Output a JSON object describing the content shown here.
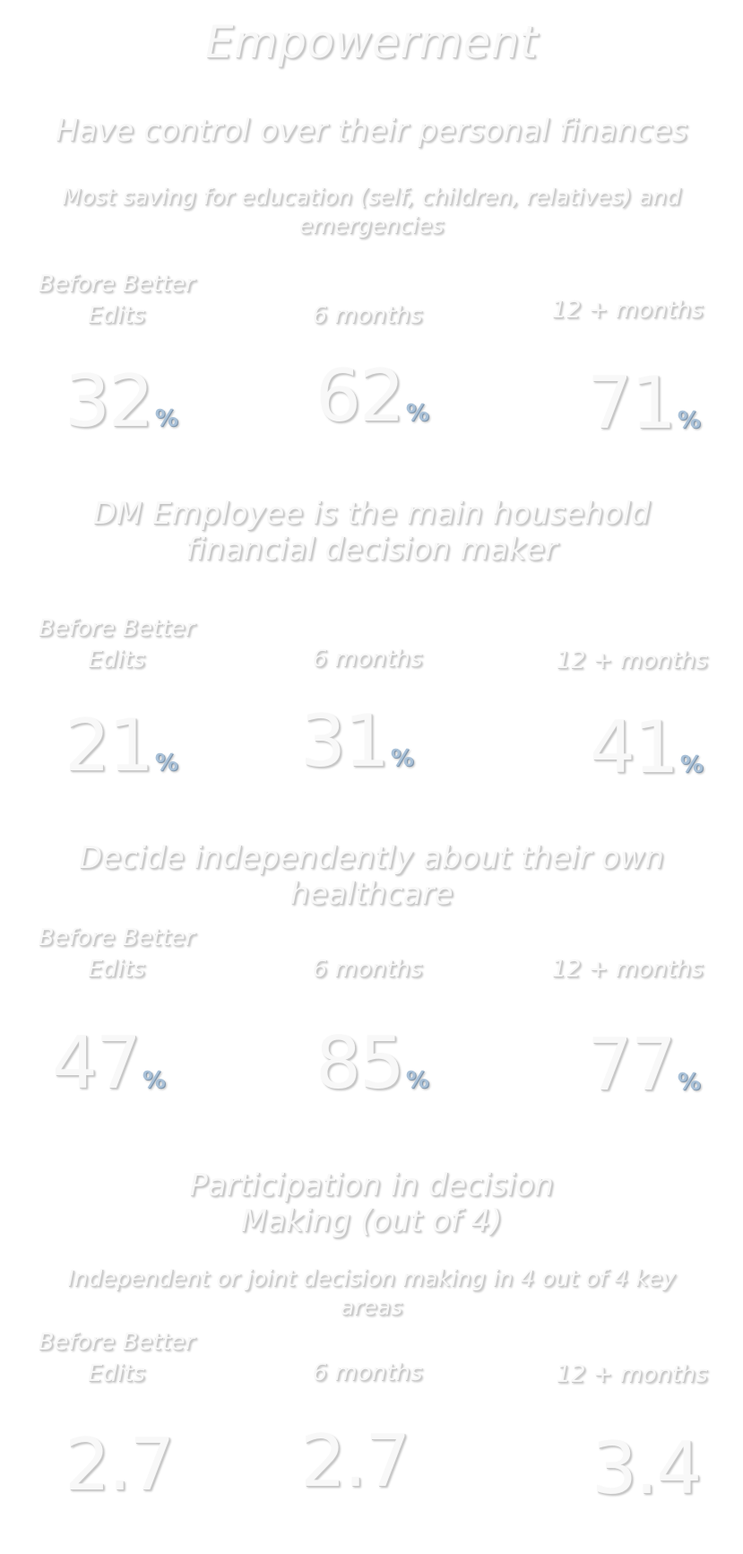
{
  "title": "Empowerment",
  "sections": [
    {
      "heading": "Have control over their personal finances",
      "subheading": "Most saving for education (self, children, relatives) and emergencies",
      "columns": [
        {
          "label": "Before Better Edits",
          "value": "32",
          "unit": "%"
        },
        {
          "label": "6 months",
          "value": "62",
          "unit": "%"
        },
        {
          "label": "12 + months",
          "value": "71",
          "unit": "%"
        }
      ]
    },
    {
      "heading": "DM Employee is the main household financial decision maker",
      "subheading": "",
      "columns": [
        {
          "label": "Before Better Edits",
          "value": "21",
          "unit": "%"
        },
        {
          "label": "6 months",
          "value": "31",
          "unit": "%"
        },
        {
          "label": "12 + months",
          "value": "41",
          "unit": "%"
        }
      ]
    },
    {
      "heading": "Decide independently about their own healthcare",
      "subheading": "",
      "columns": [
        {
          "label": "Before Better Edits",
          "value": "47",
          "unit": "%"
        },
        {
          "label": "6 months",
          "value": "85",
          "unit": "%"
        },
        {
          "label": "12 + months",
          "value": "77",
          "unit": "%"
        }
      ]
    },
    {
      "heading": "Participation in decision Making (out of 4)",
      "subheading": "Independent or joint decision making in 4 out of 4 key areas",
      "columns": [
        {
          "label": "Before Better Edits",
          "value": "2.7"
        },
        {
          "label": "6 months",
          "value": "2.7"
        },
        {
          "label": "12 + months",
          "value": "3.4"
        }
      ]
    }
  ],
  "colors": {
    "text": "#f8f8f8",
    "shadow": "#c8c8c8",
    "percent_accent": "#a9c1d8"
  }
}
